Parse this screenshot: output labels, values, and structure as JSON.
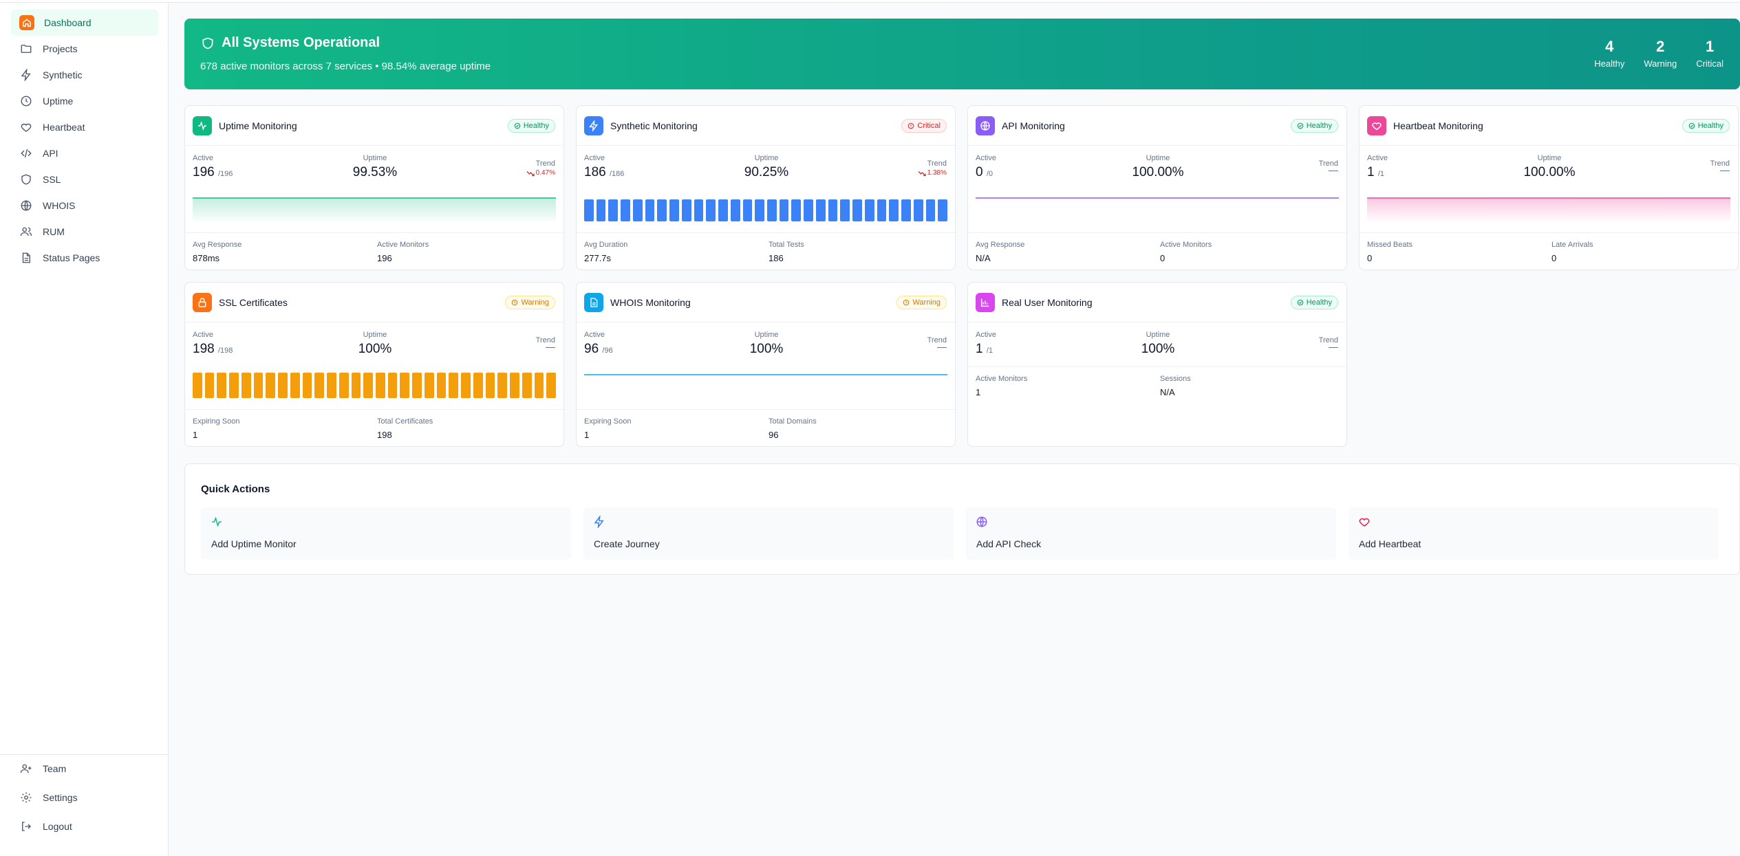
{
  "sidebar": {
    "items": [
      {
        "label": "Dashboard",
        "icon": "home-icon",
        "active": true
      },
      {
        "label": "Projects",
        "icon": "folder-icon"
      },
      {
        "label": "Synthetic",
        "icon": "lightning-icon"
      },
      {
        "label": "Uptime",
        "icon": "clock-icon"
      },
      {
        "label": "Heartbeat",
        "icon": "heart-icon"
      },
      {
        "label": "API",
        "icon": "code-icon"
      },
      {
        "label": "SSL",
        "icon": "shield-icon"
      },
      {
        "label": "WHOIS",
        "icon": "globe-icon"
      },
      {
        "label": "RUM",
        "icon": "users-icon"
      },
      {
        "label": "Status Pages",
        "icon": "file-text-icon"
      }
    ],
    "bottom": [
      {
        "label": "Team",
        "icon": "user-plus-icon"
      },
      {
        "label": "Settings",
        "icon": "gear-icon"
      },
      {
        "label": "Logout",
        "icon": "logout-icon"
      }
    ]
  },
  "banner": {
    "title": "All Systems Operational",
    "subtitle": "678 active monitors across 7 services • 98.54% average uptime",
    "stats": [
      {
        "value": "4",
        "label": "Healthy"
      },
      {
        "value": "2",
        "label": "Warning"
      },
      {
        "value": "1",
        "label": "Critical"
      }
    ]
  },
  "labels": {
    "active": "Active",
    "uptime": "Uptime",
    "trend": "Trend"
  },
  "cards": {
    "uptime": {
      "title": "Uptime Monitoring",
      "status": "Healthy",
      "active": "196",
      "total": "/196",
      "uptime": "99.53%",
      "trend": "0.47%",
      "f1_label": "Avg Response",
      "f1_value": "878ms",
      "f2_label": "Active Monitors",
      "f2_value": "196"
    },
    "synthetic": {
      "title": "Synthetic Monitoring",
      "status": "Critical",
      "active": "186",
      "total": "/186",
      "uptime": "90.25%",
      "trend": "1.38%",
      "f1_label": "Avg Duration",
      "f1_value": "277.7s",
      "f2_label": "Total Tests",
      "f2_value": "186"
    },
    "api": {
      "title": "API Monitoring",
      "status": "Healthy",
      "active": "0",
      "total": "/0",
      "uptime": "100.00%",
      "f1_label": "Avg Response",
      "f1_value": "N/A",
      "f2_label": "Active Monitors",
      "f2_value": "0"
    },
    "heartbeat": {
      "title": "Heartbeat Monitoring",
      "status": "Healthy",
      "active": "1",
      "total": "/1",
      "uptime": "100.00%",
      "f1_label": "Missed Beats",
      "f1_value": "0",
      "f2_label": "Late Arrivals",
      "f2_value": "0"
    },
    "ssl": {
      "title": "SSL Certificates",
      "status": "Warning",
      "active": "198",
      "total": "/198",
      "uptime": "100%",
      "f1_label": "Expiring Soon",
      "f1_value": "1",
      "f2_label": "Total Certificates",
      "f2_value": "198"
    },
    "whois": {
      "title": "WHOIS Monitoring",
      "status": "Warning",
      "active": "96",
      "total": "/96",
      "uptime": "100%",
      "f1_label": "Expiring Soon",
      "f1_value": "1",
      "f2_label": "Total Domains",
      "f2_value": "96"
    },
    "rum": {
      "title": "Real User Monitoring",
      "status": "Healthy",
      "active": "1",
      "total": "/1",
      "uptime": "100%",
      "f1_label": "Active Monitors",
      "f1_value": "1",
      "f2_label": "Sessions",
      "f2_value": "N/A"
    }
  },
  "quick_actions": {
    "title": "Quick Actions",
    "items": [
      {
        "label": "Add Uptime Monitor",
        "icon": "activity-icon"
      },
      {
        "label": "Create Journey",
        "icon": "lightning-icon"
      },
      {
        "label": "Add API Check",
        "icon": "globe-icon"
      },
      {
        "label": "Add Heartbeat",
        "icon": "heart-icon"
      }
    ]
  },
  "colors": {
    "accent": "#10b981",
    "uptime": "#10b981",
    "synthetic": "#3b82f6",
    "api": "#8b5cf6",
    "heartbeat": "#ec4899",
    "ssl": "#f59e0b",
    "whois": "#0ea5e9",
    "rum": "#d946ef",
    "critical": "#dc2626"
  }
}
